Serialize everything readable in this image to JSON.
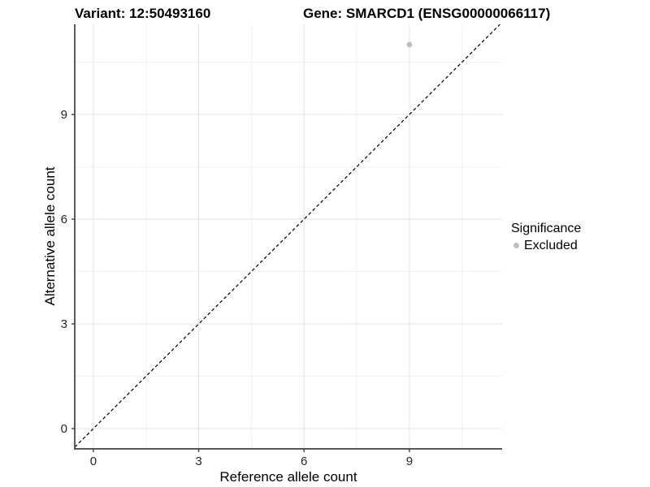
{
  "chart_data": {
    "type": "scatter",
    "title_left": "Variant: 12:50493160",
    "title_right": "Gene: SMARCD1 (ENSG00000066117)",
    "xlabel": "Reference allele count",
    "ylabel": "Alternative allele count",
    "xlim": [
      -0.53,
      11.64
    ],
    "ylim": [
      -0.58,
      11.58
    ],
    "x_major_ticks": [
      0,
      3,
      6,
      9
    ],
    "y_major_ticks": [
      0,
      3,
      6,
      9
    ],
    "x_minor_ticks": [
      1.5,
      4.5,
      7.5,
      10.5
    ],
    "y_minor_ticks": [
      1.5,
      4.5,
      7.5,
      10.5
    ],
    "grid": true,
    "reference_line": {
      "type": "identity",
      "style": "dashed",
      "color": "#000000"
    },
    "series": [
      {
        "name": "Excluded",
        "color": "#bebebe",
        "points": [
          {
            "x": 9,
            "y": 11
          }
        ]
      }
    ],
    "legend": {
      "title": "Significance",
      "position": "right",
      "items": [
        {
          "label": "Excluded",
          "color": "#bebebe"
        }
      ]
    },
    "colors": {
      "axis_line": "#404040",
      "tick_label": "#262626",
      "grid_major": "#e3e3e3",
      "grid_minor": "#f1f1f1",
      "background": "#ffffff"
    }
  }
}
